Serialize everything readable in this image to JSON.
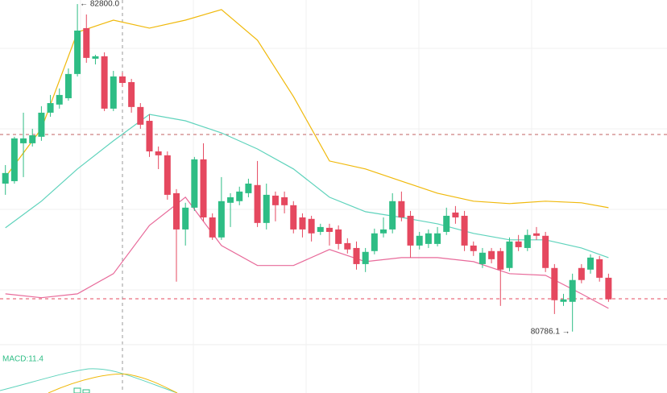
{
  "chart_data": {
    "type": "candlestick",
    "ylim": [
      80750,
      82825
    ],
    "xlim": [
      -0.6,
      73.5
    ],
    "up_color": "#2ebd85",
    "down_color": "#e5485f",
    "open": [
      81696,
      81711,
      81944,
      81944,
      81984,
      82132,
      82182,
      82221,
      82370,
      82652,
      82464,
      82479,
      82157,
      82355,
      82320,
      82167,
      82082,
      81894,
      81870,
      81637,
      81414,
      81548,
      81845,
      81488,
      81365,
      81578,
      81588,
      81637,
      81687,
      81454,
      81622,
      81612,
      81563,
      81488,
      81479,
      81399,
      81424,
      81414,
      81330,
      81300,
      81201,
      81281,
      81390,
      81414,
      81588,
      81498,
      81315,
      81325,
      81325,
      81399,
      81518,
      81498,
      81315,
      81201,
      81281,
      81281,
      81177,
      81340,
      81300,
      81390,
      81375,
      81177,
      80969,
      80969,
      81177,
      81167,
      81231,
      81117
    ],
    "high": [
      81810,
      81984,
      82132,
      82033,
      82172,
      82241,
      82281,
      82404,
      82800,
      82736,
      82488,
      82503,
      82389,
      82380,
      82340,
      82191,
      82122,
      81924,
      81894,
      81662,
      81578,
      81860,
      81944,
      81513,
      81736,
      81637,
      81677,
      81726,
      81835,
      81696,
      81647,
      81647,
      81588,
      81513,
      81498,
      81449,
      81449,
      81439,
      81360,
      81340,
      81300,
      81419,
      81488,
      81637,
      81647,
      81528,
      81399,
      81414,
      81429,
      81548,
      81558,
      81528,
      81340,
      81300,
      81300,
      81300,
      81365,
      81380,
      81414,
      81429,
      81399,
      81201,
      81018,
      81142,
      81201,
      81261,
      81251,
      81142
    ],
    "low": [
      81627,
      81696,
      81736,
      81924,
      81959,
      82107,
      82157,
      82206,
      82355,
      82439,
      82429,
      82142,
      82142,
      82290,
      82132,
      82033,
      81860,
      81785,
      81597,
      81093,
      81315,
      81528,
      81464,
      81350,
      81350,
      81429,
      81563,
      81612,
      81429,
      81414,
      81464,
      81513,
      81390,
      81365,
      81340,
      81380,
      81315,
      81291,
      81266,
      81167,
      81152,
      81261,
      81365,
      81390,
      81464,
      81241,
      81291,
      81300,
      81310,
      81380,
      81449,
      81281,
      81251,
      81177,
      81206,
      80944,
      81157,
      81281,
      81281,
      81350,
      81152,
      80894,
      80944,
      80786,
      81083,
      81142,
      81093,
      80969
    ],
    "close": [
      81761,
      81974,
      81974,
      81993,
      82132,
      82191,
      82241,
      82370,
      82637,
      82469,
      82479,
      82157,
      82355,
      82315,
      82167,
      82058,
      81894,
      81870,
      81627,
      81414,
      81548,
      81845,
      81488,
      81365,
      81588,
      81612,
      81647,
      81696,
      81454,
      81627,
      81563,
      81563,
      81414,
      81414,
      81390,
      81429,
      81399,
      81325,
      81291,
      81201,
      81276,
      81390,
      81414,
      81588,
      81488,
      81315,
      81375,
      81390,
      81390,
      81498,
      81488,
      81315,
      81281,
      81271,
      81231,
      81167,
      81340,
      81305,
      81380,
      81375,
      81177,
      80979,
      80984,
      81103,
      81103,
      81241,
      81117,
      80984
    ],
    "lines": [
      {
        "color": "#f0b90b",
        "x": [
          0,
          4,
          8,
          12,
          16,
          20,
          24,
          28,
          32,
          36,
          40,
          44,
          48,
          52,
          56,
          60,
          64,
          67
        ],
        "values": [
          81736,
          82033,
          82627,
          82701,
          82652,
          82701,
          82766,
          82578,
          82231,
          81835,
          81786,
          81711,
          81637,
          81588,
          81573,
          81588,
          81578,
          81548
        ]
      },
      {
        "color": "#5fd3bc",
        "x": [
          0,
          4,
          8,
          12,
          16,
          20,
          24,
          28,
          32,
          36,
          40,
          44,
          48,
          52,
          56,
          60,
          64,
          67
        ],
        "values": [
          81424,
          81588,
          81786,
          81959,
          82122,
          82082,
          82008,
          81909,
          81786,
          81612,
          81523,
          81488,
          81449,
          81390,
          81350,
          81350,
          81300,
          81241
        ]
      },
      {
        "color": "#e86a9a",
        "x": [
          0,
          4,
          8,
          12,
          16,
          20,
          24,
          28,
          32,
          36,
          40,
          44,
          48,
          52,
          56,
          60,
          64,
          67
        ],
        "values": [
          81018,
          80994,
          81018,
          81142,
          81439,
          81612,
          81315,
          81192,
          81192,
          81291,
          81216,
          81241,
          81241,
          81216,
          81142,
          81132,
          81018,
          80929
        ]
      }
    ],
    "annotations": [
      {
        "x": 8,
        "value": 82800,
        "label": "← 82800.0"
      },
      {
        "x": 63,
        "value": 80786.1,
        "label": "80786.1 →"
      }
    ],
    "macd_label": "MACD:11.4"
  }
}
